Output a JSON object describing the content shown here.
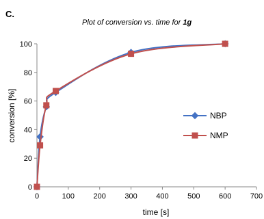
{
  "chart_data": {
    "type": "line",
    "panel_label": "C.",
    "title": "Plot of conversion vs. time for ",
    "title_bold": "1g",
    "xlabel": "time [s]",
    "ylabel": "conversion [%]",
    "xlim": [
      0,
      700
    ],
    "ylim": [
      0,
      100
    ],
    "xticks": [
      0,
      100,
      200,
      300,
      400,
      500,
      600,
      700
    ],
    "yticks": [
      0,
      20,
      40,
      60,
      80,
      100
    ],
    "grid": false,
    "legend_position": "right",
    "series": [
      {
        "name": "NBP",
        "color": "#4472c4",
        "marker": "diamond",
        "x": [
          0,
          10,
          30,
          60,
          300,
          600
        ],
        "y": [
          0,
          35,
          56,
          66,
          94,
          100
        ]
      },
      {
        "name": "NMP",
        "color": "#c0504d",
        "marker": "square",
        "x": [
          0,
          10,
          30,
          60,
          300,
          600
        ],
        "y": [
          0,
          29,
          57,
          67,
          93,
          100
        ]
      }
    ]
  }
}
